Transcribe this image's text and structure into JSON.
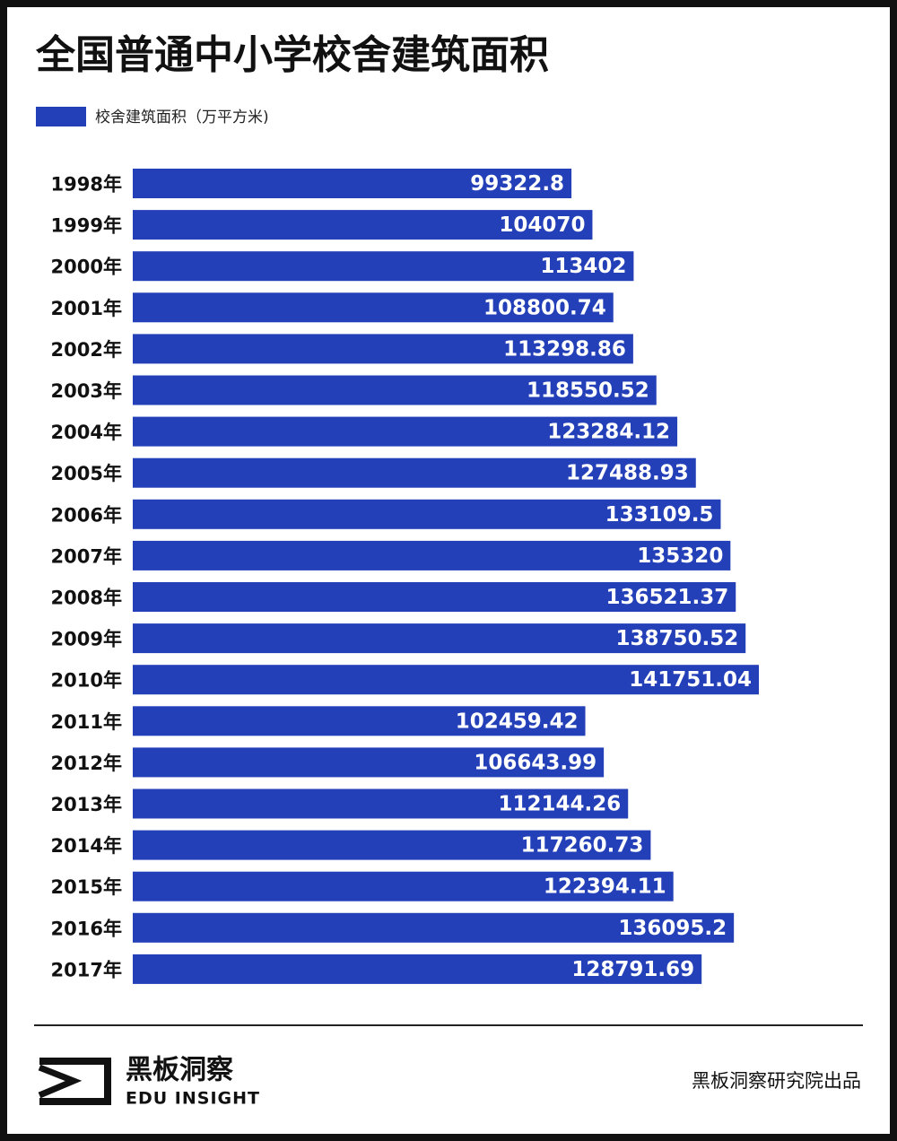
{
  "chart_data": {
    "type": "bar",
    "orientation": "horizontal",
    "title": "全国普通中小学校舍建筑面积",
    "categories": [
      "1998年",
      "1999年",
      "2000年",
      "2001年",
      "2002年",
      "2003年",
      "2004年",
      "2005年",
      "2006年",
      "2007年",
      "2008年",
      "2009年",
      "2010年",
      "2011年",
      "2012年",
      "2013年",
      "2014年",
      "2015年",
      "2016年",
      "2017年"
    ],
    "series": [
      {
        "name": "校舍建筑面积（万平方米)",
        "color": "#2440b8",
        "values": [
          99322.8,
          104070,
          113402,
          108800.74,
          113298.86,
          118550.52,
          123284.12,
          127488.93,
          133109.5,
          135320,
          136521.37,
          138750.52,
          141751.04,
          102459.42,
          106643.99,
          112144.26,
          117260.73,
          122394.11,
          136095.2,
          128791.69
        ]
      }
    ]
  },
  "footer": {
    "brand": "黑板洞察",
    "brand_en": "EDU INSIGHT",
    "credit": "黑板洞察研究院出品"
  }
}
